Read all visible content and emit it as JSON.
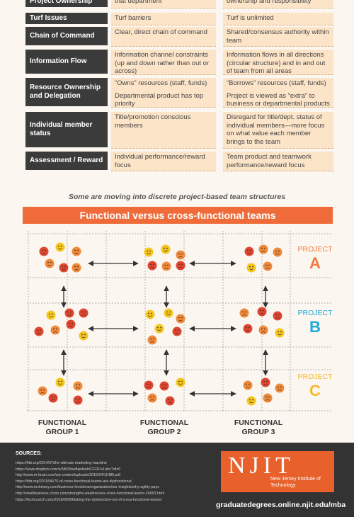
{
  "table": {
    "rows": [
      {
        "label": "Project Ownership",
        "functional": [
          "that department"
        ],
        "cross_functional": [
          "ownership and responsibility"
        ]
      },
      {
        "label": "Turf Issues",
        "functional": [
          "Turf barriers"
        ],
        "cross_functional": [
          "Turf is unlimited"
        ]
      },
      {
        "label": "Chain of Command",
        "functional": [
          "Clear, direct chain of command"
        ],
        "cross_functional": [
          "Shared/consensus authority within team"
        ]
      },
      {
        "label": "Information Flow",
        "functional": [
          "Information channel constraints (up and down rather than out or across)"
        ],
        "cross_functional": [
          "Information flows in all directions (circular structure) and in and out of team from all areas"
        ]
      },
      {
        "label": "Resource Ownership and Delegation",
        "functional": [
          "“Owns” resources (staff, funds)",
          "Departmental product has top priority"
        ],
        "cross_functional": [
          "“Borrows” resources (staff, funds)",
          "Project is viewed as “extra” to business or departmental products"
        ]
      },
      {
        "label": "Individual member status",
        "functional": [
          "Title/promotion conscious members"
        ],
        "cross_functional": [
          "Disregard for title/dept. status of individual members—more focus on what value each member brings to the team"
        ]
      },
      {
        "label": "Assessment / Reward",
        "functional": [
          "Individual performance/reward focus"
        ],
        "cross_functional": [
          "Team product and teamwork performance/reward focus"
        ]
      }
    ]
  },
  "subtitle": "Some are moving into discrete project-based team structures",
  "banner": "Functional versus cross-functional teams",
  "projects": [
    {
      "word": "PROJECT",
      "letter": "A"
    },
    {
      "word": "PROJECT",
      "letter": "B"
    },
    {
      "word": "PROJECT",
      "letter": "C"
    }
  ],
  "groups": [
    [
      "FUNCTIONAL",
      "GROUP 1"
    ],
    [
      "FUNCTIONAL",
      "GROUP 2"
    ],
    [
      "FUNCTIONAL",
      "GROUP 3"
    ]
  ],
  "sources": {
    "title": "SOURCES:",
    "urls": [
      "https://hbr.org/2014/07/the-ultimate-marketing-machine",
      "https://www.dropbox.com/s/5t5i3fow8qrdoeh/CFDFv4.doc?dl=0",
      "http://www.m-brain.com/wp-content/uploads/2015/04/11480.pdf",
      "https://hbr.org/2015/06/75-of-cross-functional-teams-are-dysfunctional",
      "http://www.mckinsey.com/business-functions/organization/our-insights/why-agility-pays",
      "http://smallbusiness.chron.com/strengths-weaknesses-cross-functional-teams-24653.html",
      "https://techcrunch.com/2016/06/09/taking-the-dysfunction-out-of-cross-functional-teams/"
    ]
  },
  "logo": {
    "name": "NJIT",
    "full": "New Jersey Institute of Technology"
  },
  "url": "graduatedegrees.online.njit.edu/mba"
}
